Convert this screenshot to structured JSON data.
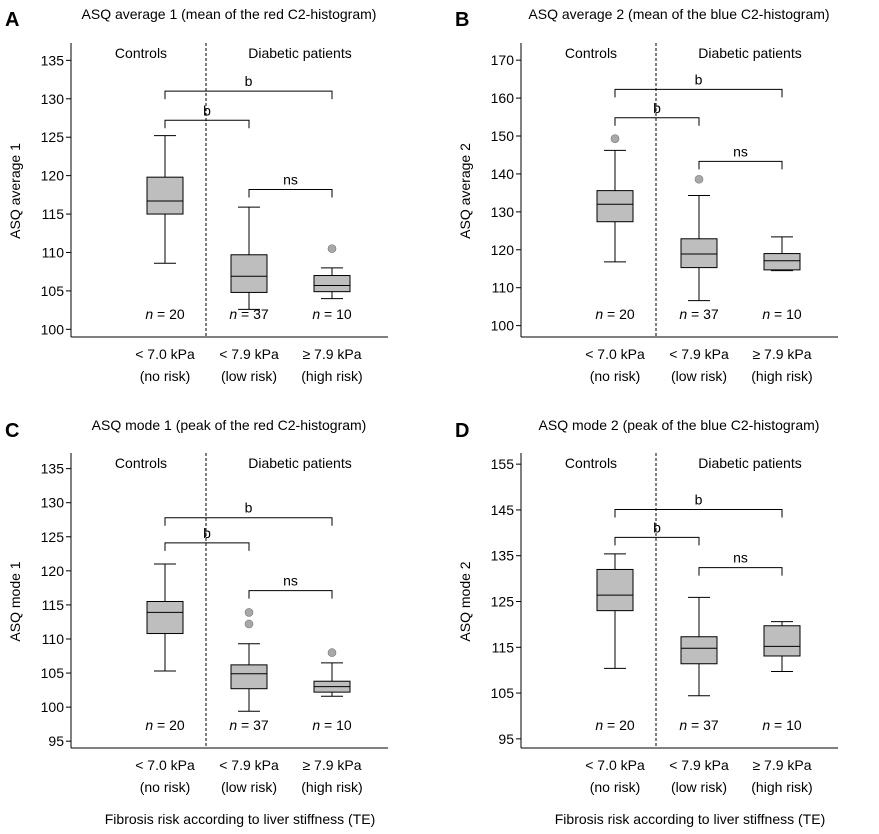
{
  "colors": {
    "box": "#bebebe",
    "stroke": "#000000",
    "outlier": "#a8a8a8"
  },
  "chart_data": [
    {
      "type": "box",
      "panel": "A",
      "title": "ASQ average 1 (mean of the red C2-histogram)",
      "ylabel": "ASQ average 1",
      "xlabel": "",
      "ylim": [
        99,
        137
      ],
      "yticks": [
        100,
        105,
        110,
        115,
        120,
        125,
        130,
        135
      ],
      "group_labels": [
        "Controls",
        "Diabetic patients"
      ],
      "categories": [
        {
          "line1": "< 7.0 kPa",
          "line2": "(no risk)",
          "n": "20",
          "min": 108.6,
          "q1": 115.0,
          "median": 116.7,
          "q3": 119.8,
          "max": 125.2,
          "outliers": []
        },
        {
          "line1": "< 7.9 kPa",
          "line2": "(low risk)",
          "n": "37",
          "min": 102.6,
          "q1": 104.8,
          "median": 106.9,
          "q3": 109.7,
          "max": 115.9,
          "outliers": []
        },
        {
          "line1": "≥ 7.9 kPa",
          "line2": "(high risk)",
          "n": "10",
          "min": 104.0,
          "q1": 104.9,
          "median": 105.7,
          "q3": 107.0,
          "max": 108.0,
          "outliers": [
            110.5
          ]
        }
      ],
      "comparisons": [
        {
          "from": 0,
          "to": 2,
          "label": "b",
          "y": 131.0
        },
        {
          "from": 0,
          "to": 1,
          "label": "b",
          "y": 127.2
        },
        {
          "from": 1,
          "to": 2,
          "label": "ns",
          "y": 118.2
        }
      ]
    },
    {
      "type": "box",
      "panel": "B",
      "title": "ASQ average 2 (mean of the blue C2-histogram)",
      "ylabel": "ASQ average 2",
      "xlabel": "",
      "ylim": [
        97,
        174
      ],
      "yticks": [
        100,
        110,
        120,
        130,
        140,
        150,
        160,
        170
      ],
      "group_labels": [
        "Controls",
        "Diabetic patients"
      ],
      "categories": [
        {
          "line1": "< 7.0 kPa",
          "line2": "(no risk)",
          "n": "20",
          "min": 116.8,
          "q1": 127.4,
          "median": 132.0,
          "q3": 135.6,
          "max": 146.2,
          "outliers": [
            149.3
          ]
        },
        {
          "line1": "< 7.9 kPa",
          "line2": "(low risk)",
          "n": "37",
          "min": 106.6,
          "q1": 115.3,
          "median": 118.9,
          "q3": 122.9,
          "max": 134.3,
          "outliers": [
            138.6
          ]
        },
        {
          "line1": "≥ 7.9 kPa",
          "line2": "(high risk)",
          "n": "10",
          "min": 114.5,
          "q1": 114.7,
          "median": 117.1,
          "q3": 119.0,
          "max": 123.4,
          "outliers": []
        }
      ],
      "comparisons": [
        {
          "from": 0,
          "to": 2,
          "label": "b",
          "y": 162.3
        },
        {
          "from": 0,
          "to": 1,
          "label": "b",
          "y": 154.8
        },
        {
          "from": 1,
          "to": 2,
          "label": "ns",
          "y": 143.3
        }
      ]
    },
    {
      "type": "box",
      "panel": "C",
      "title": "ASQ mode 1 (peak of the red C2-histogram)",
      "ylabel": "ASQ mode 1",
      "xlabel": "Fibrosis risk according to liver stiffness (TE)",
      "ylim": [
        94,
        137
      ],
      "yticks": [
        95,
        100,
        105,
        110,
        115,
        120,
        125,
        130,
        135
      ],
      "group_labels": [
        "Controls",
        "Diabetic patients"
      ],
      "categories": [
        {
          "line1": "< 7.0 kPa",
          "line2": "(no risk)",
          "n": "20",
          "min": 105.3,
          "q1": 110.8,
          "median": 113.9,
          "q3": 115.5,
          "max": 121.0,
          "outliers": []
        },
        {
          "line1": "< 7.9 kPa",
          "line2": "(low risk)",
          "n": "37",
          "min": 99.4,
          "q1": 102.7,
          "median": 104.9,
          "q3": 106.2,
          "max": 109.3,
          "outliers": [
            112.2,
            113.9
          ]
        },
        {
          "line1": "≥ 7.9 kPa",
          "line2": "(high risk)",
          "n": "10",
          "min": 101.6,
          "q1": 102.2,
          "median": 103.0,
          "q3": 103.8,
          "max": 106.5,
          "outliers": [
            108.0
          ]
        }
      ],
      "comparisons": [
        {
          "from": 0,
          "to": 2,
          "label": "b",
          "y": 127.8
        },
        {
          "from": 0,
          "to": 1,
          "label": "b",
          "y": 124.1
        },
        {
          "from": 1,
          "to": 2,
          "label": "ns",
          "y": 117.1
        }
      ]
    },
    {
      "type": "box",
      "panel": "D",
      "title": "ASQ mode 2 (peak of the blue C2-histogram)",
      "ylabel": "ASQ mode 2",
      "xlabel": "Fibrosis risk according to liver stiffness (TE)",
      "ylim": [
        93,
        157
      ],
      "yticks": [
        95,
        105,
        115,
        125,
        135,
        145,
        155
      ],
      "group_labels": [
        "Controls",
        "Diabetic patients"
      ],
      "categories": [
        {
          "line1": "< 7.0 kPa",
          "line2": "(no risk)",
          "n": "20",
          "min": 110.4,
          "q1": 123.0,
          "median": 126.4,
          "q3": 132.0,
          "max": 135.4,
          "outliers": []
        },
        {
          "line1": "< 7.9 kPa",
          "line2": "(low risk)",
          "n": "37",
          "min": 104.4,
          "q1": 111.4,
          "median": 114.8,
          "q3": 117.3,
          "max": 125.9,
          "outliers": []
        },
        {
          "line1": "≥ 7.9 kPa",
          "line2": "(high risk)",
          "n": "10",
          "min": 109.7,
          "q1": 113.1,
          "median": 115.2,
          "q3": 119.7,
          "max": 120.6,
          "outliers": []
        }
      ],
      "comparisons": [
        {
          "from": 0,
          "to": 2,
          "label": "b",
          "y": 145.1
        },
        {
          "from": 0,
          "to": 1,
          "label": "b",
          "y": 139.0
        },
        {
          "from": 1,
          "to": 2,
          "label": "ns",
          "y": 132.4
        }
      ]
    }
  ]
}
